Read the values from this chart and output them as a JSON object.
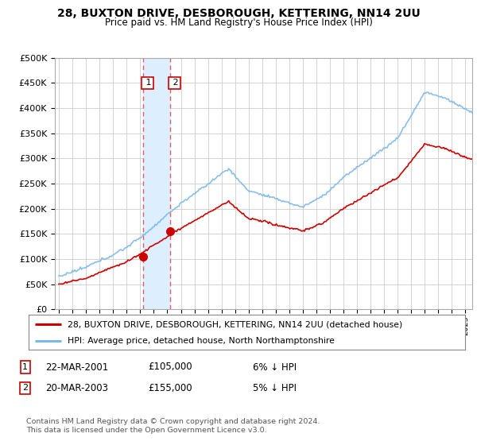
{
  "title": "28, BUXTON DRIVE, DESBOROUGH, KETTERING, NN14 2UU",
  "subtitle": "Price paid vs. HM Land Registry's House Price Index (HPI)",
  "ylabel_ticks": [
    "£0",
    "£50K",
    "£100K",
    "£150K",
    "£200K",
    "£250K",
    "£300K",
    "£350K",
    "£400K",
    "£450K",
    "£500K"
  ],
  "ytick_values": [
    0,
    50000,
    100000,
    150000,
    200000,
    250000,
    300000,
    350000,
    400000,
    450000,
    500000
  ],
  "ylim": [
    0,
    500000
  ],
  "xlim_start": 1994.7,
  "xlim_end": 2025.5,
  "hpi_color": "#7ab8e8",
  "price_color": "#cc0000",
  "transaction_fill_color": "#ddeeff",
  "transaction_line_color": "#e06060",
  "tr1_x": 2001.22,
  "tr2_x": 2003.22,
  "tr1_price": 105000,
  "tr2_price": 155000,
  "legend_line1": "28, BUXTON DRIVE, DESBOROUGH, KETTERING, NN14 2UU (detached house)",
  "legend_line2": "HPI: Average price, detached house, North Northamptonshire",
  "table_rows": [
    {
      "num": "1",
      "date": "22-MAR-2001",
      "price": "£105,000",
      "pct": "6% ↓ HPI"
    },
    {
      "num": "2",
      "date": "20-MAR-2003",
      "price": "£155,000",
      "pct": "5% ↓ HPI"
    }
  ],
  "footer": "Contains HM Land Registry data © Crown copyright and database right 2024.\nThis data is licensed under the Open Government Licence v3.0.",
  "background_color": "#ffffff",
  "grid_color": "#cccccc"
}
